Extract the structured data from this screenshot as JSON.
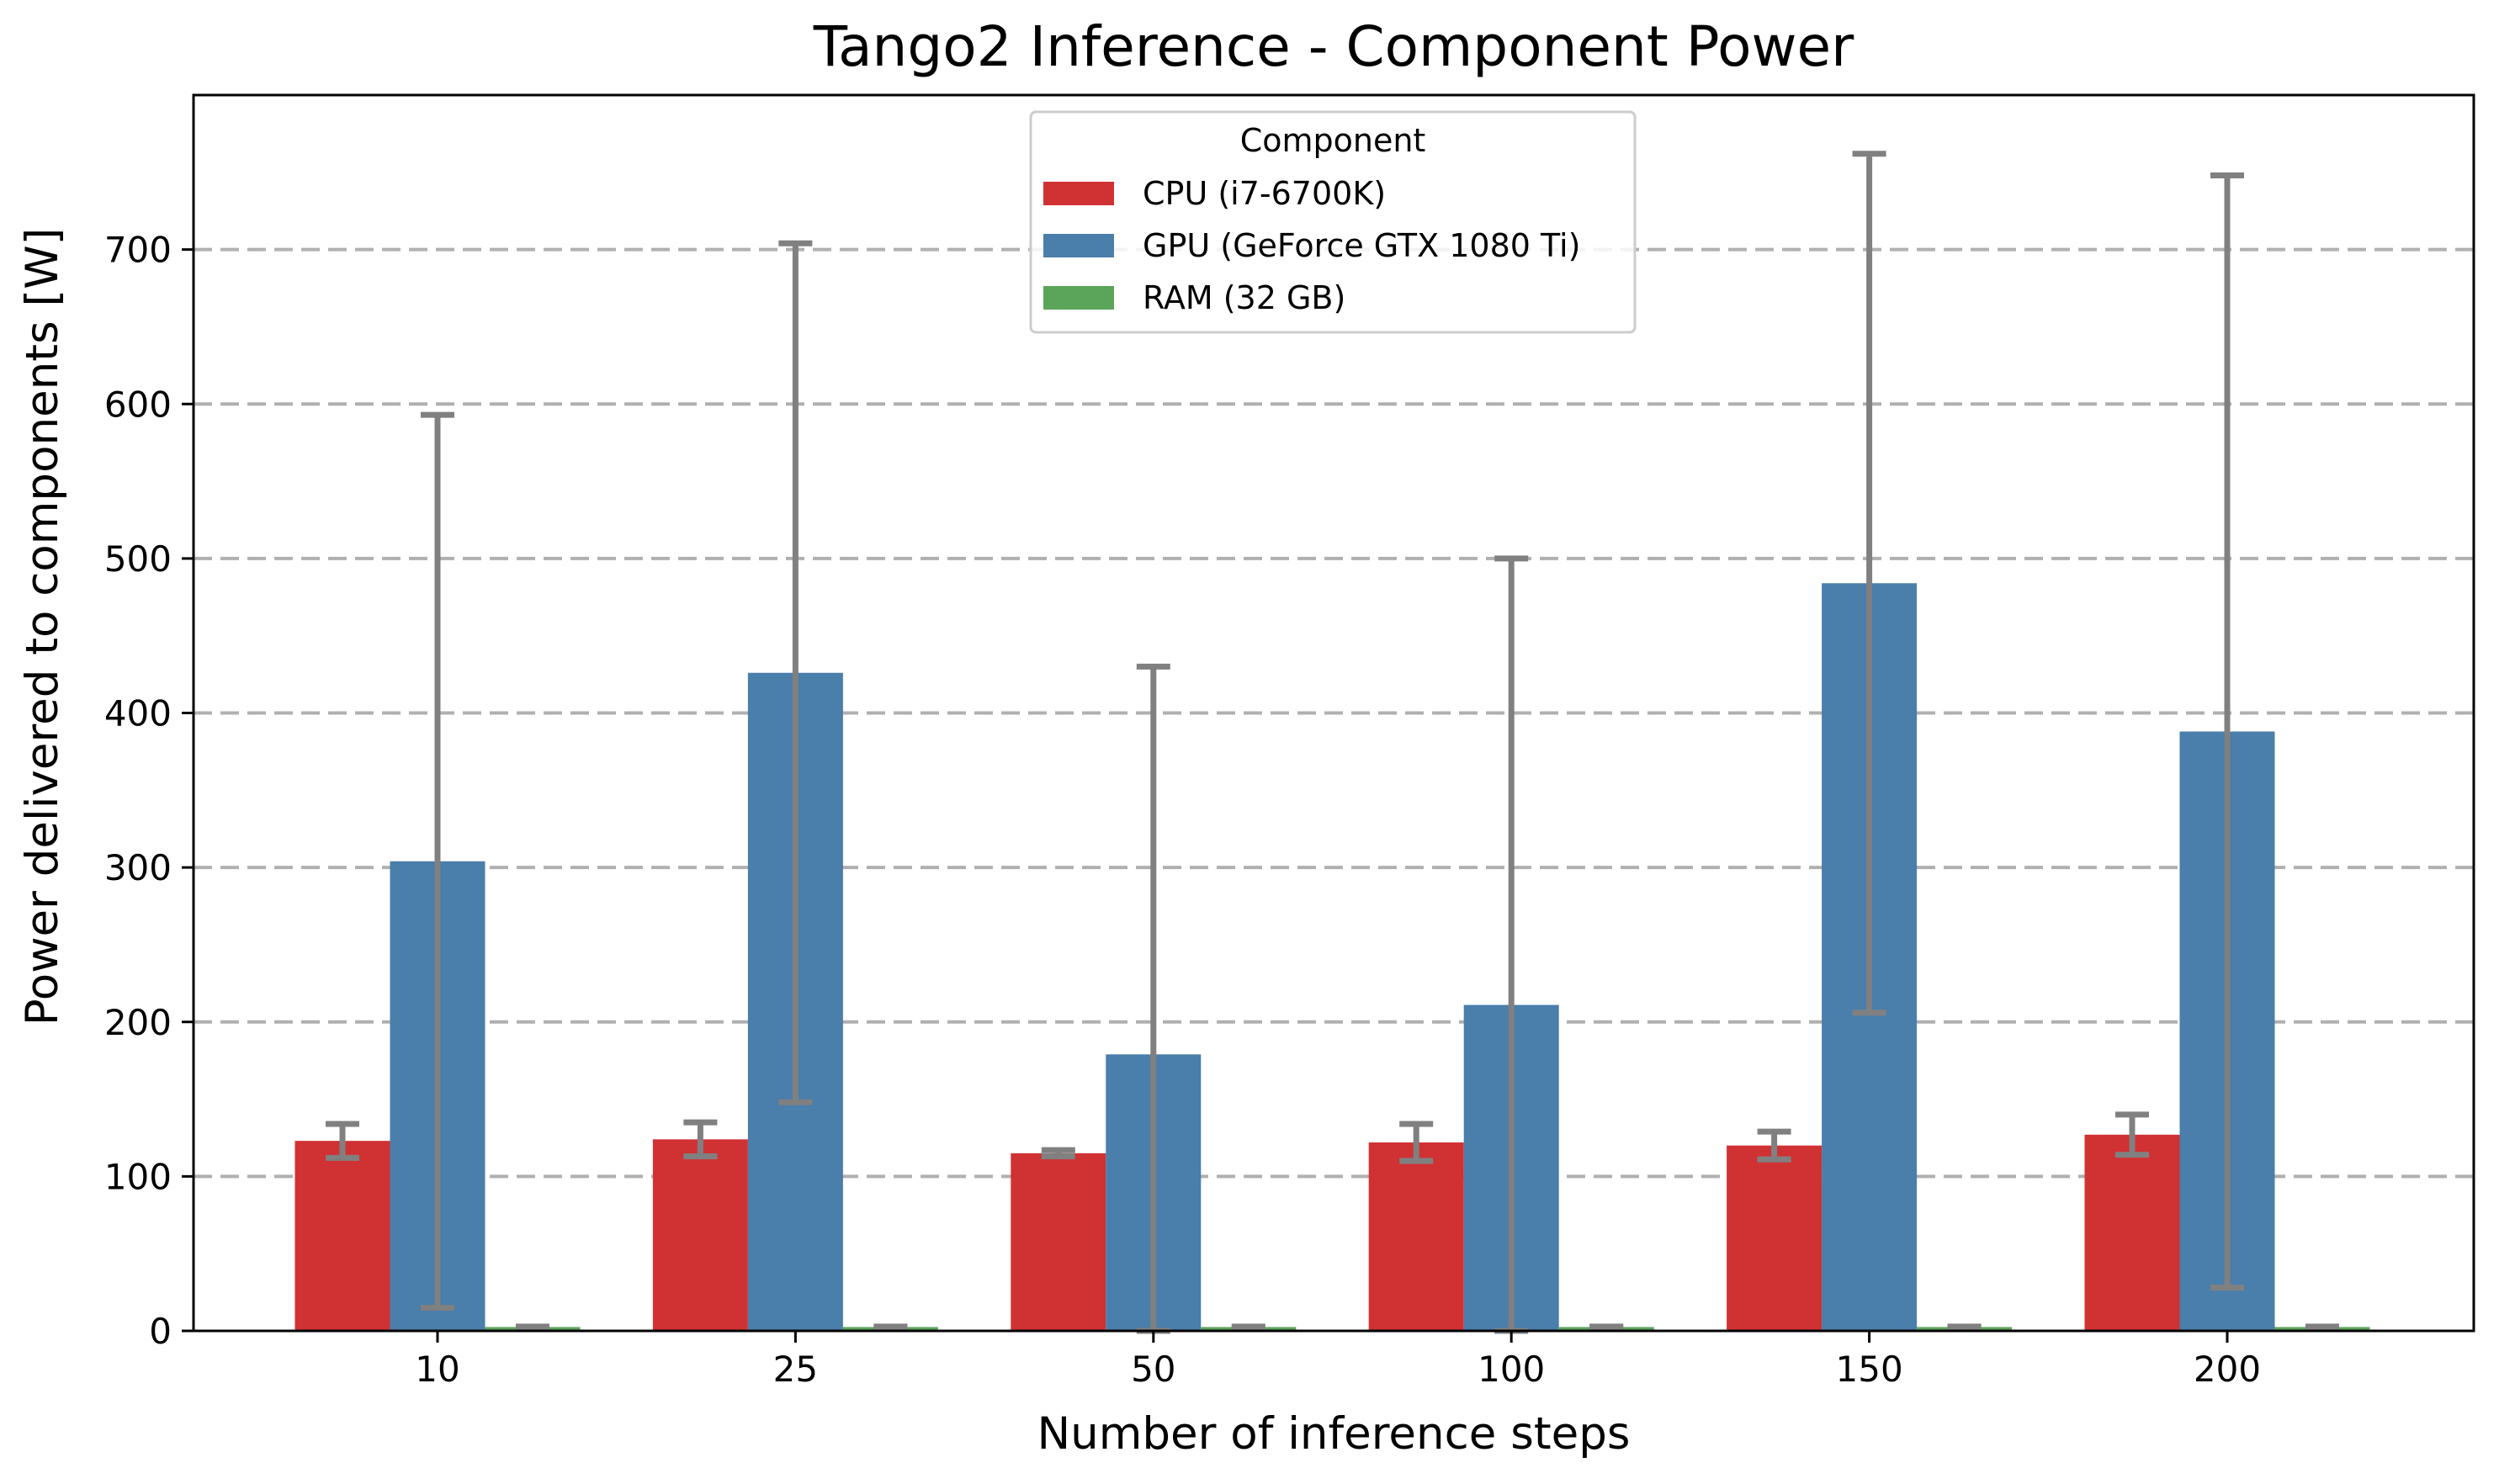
{
  "chart_data": {
    "type": "bar",
    "title": "Tango2 Inference - Component Power",
    "xlabel": "Number of inference steps",
    "ylabel": "Power delivered to components [W]",
    "categories": [
      "10",
      "25",
      "50",
      "100",
      "150",
      "200"
    ],
    "ylim": [
      0,
      800
    ],
    "yticks": [
      0,
      100,
      200,
      300,
      400,
      500,
      600,
      700
    ],
    "grid": "horizontal dashed",
    "legend": {
      "title": "Component",
      "placement": "top-center"
    },
    "series": [
      {
        "name": "CPU (i7-6700K)",
        "color": "#d03234",
        "values": [
          123,
          124,
          115,
          122,
          120,
          127
        ],
        "error": [
          11,
          11,
          2,
          12,
          9,
          13
        ]
      },
      {
        "name": "GPU (GeForce GTX 1080 Ti)",
        "color": "#4a7eab",
        "values": [
          304,
          426,
          179,
          211,
          484,
          388
        ],
        "error": [
          289,
          278,
          251,
          289,
          278,
          360
        ]
      },
      {
        "name": "RAM (32 GB)",
        "color": "#5ba55b",
        "values": [
          2.5,
          2.5,
          2.5,
          2.5,
          2.5,
          2.5
        ],
        "error": [
          0.3,
          0.3,
          0.3,
          0.3,
          0.3,
          0.3
        ]
      }
    ],
    "errorbar_color": "#808080"
  }
}
